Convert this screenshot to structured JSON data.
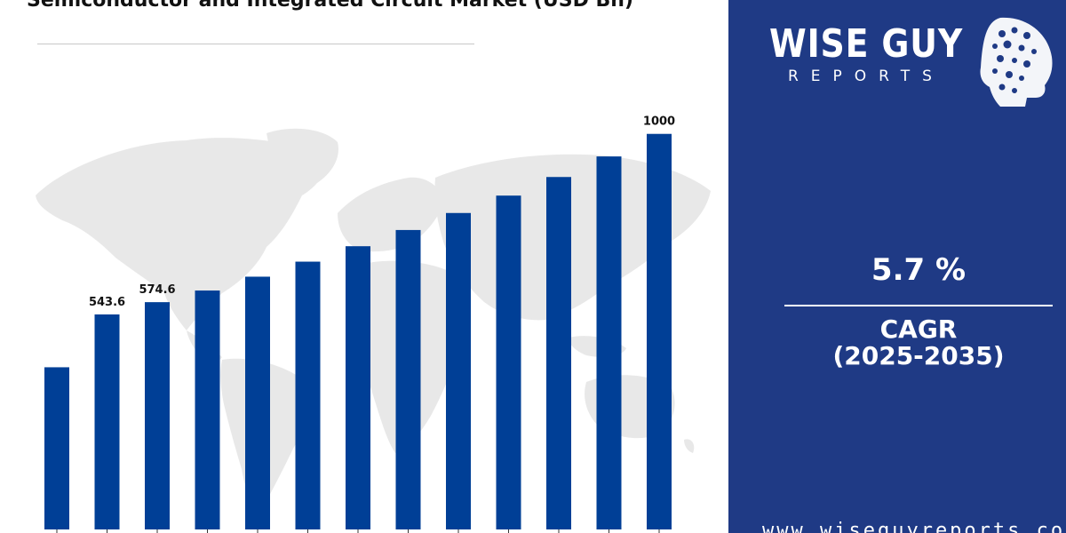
{
  "title": "Semiconductor and Integrated Circuit Market (USD Bn)",
  "brand": {
    "name": "WISE GUY",
    "tagline": "REPORTS",
    "website": "www.wiseguyreports.com"
  },
  "cagr": {
    "value": "5.7 %",
    "label": "CAGR",
    "period": "(2025-2035)"
  },
  "colors": {
    "bar": "#003f96",
    "panel": "#1f3a85",
    "map": "#e6e6e6"
  },
  "chart_data": {
    "type": "bar",
    "categories": [
      "",
      "",
      "",
      "",
      "",
      "",
      "",
      "",
      "",
      "",
      "",
      "",
      ""
    ],
    "values": [
      410,
      543.6,
      574.6,
      604,
      639,
      677,
      716,
      757,
      800,
      844,
      891,
      943,
      1000
    ],
    "data_labels": [
      "",
      "543.6",
      "574.6",
      "",
      "",
      "",
      "",
      "",
      "",
      "",
      "",
      "",
      "1000"
    ],
    "ylim": [
      0,
      1060
    ],
    "grid": false,
    "legend": "none",
    "xlabel": "",
    "ylabel": ""
  }
}
